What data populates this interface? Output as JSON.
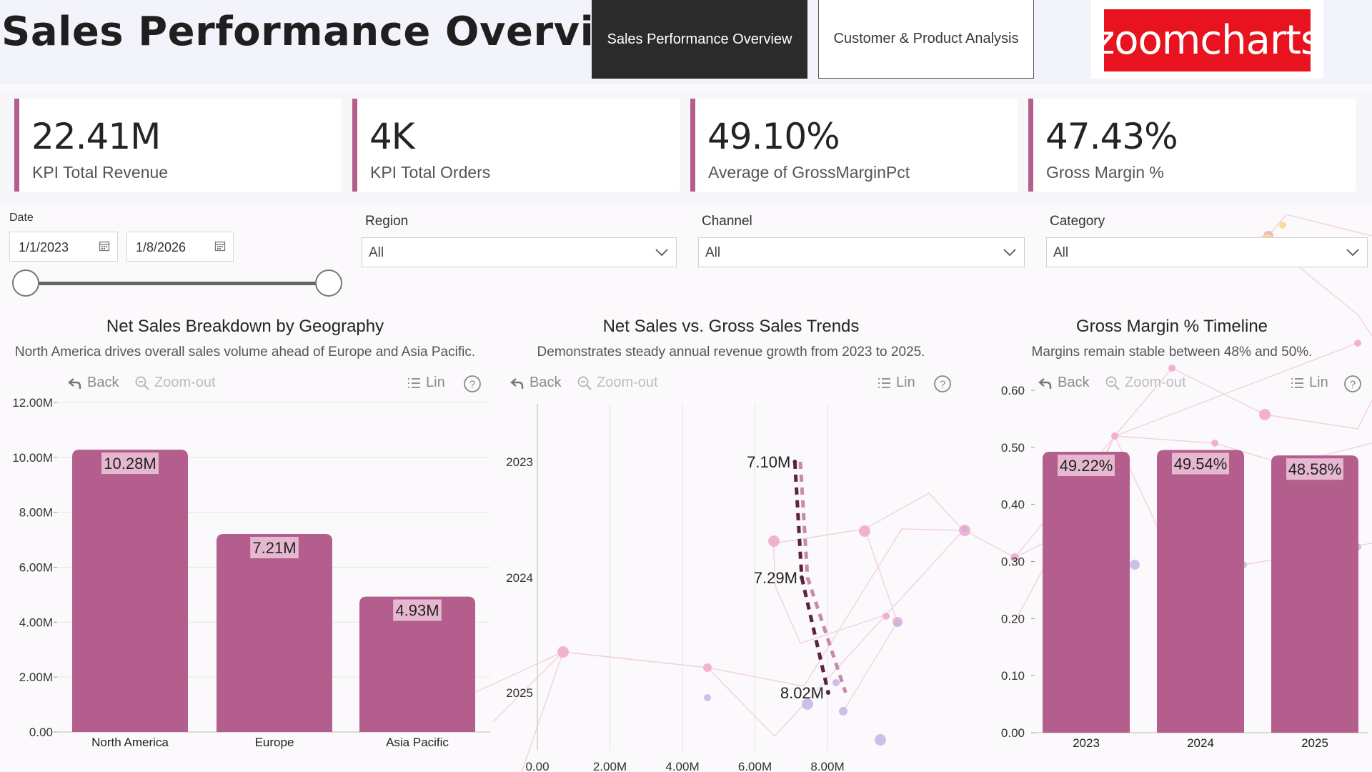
{
  "header": {
    "title": "Sales Performance Overview",
    "nav_active": "Sales Performance Overview",
    "nav_inactive": "Customer & Product Analysis",
    "logo_text": "zoomcharts"
  },
  "kpis": [
    {
      "value": "22.41M",
      "label": "KPI Total Revenue"
    },
    {
      "value": "4K",
      "label": "KPI Total Orders"
    },
    {
      "value": "49.10%",
      "label": "Average of GrossMarginPct"
    },
    {
      "value": "47.43%",
      "label": "Gross Margin %"
    }
  ],
  "filters": {
    "date": {
      "label": "Date",
      "start": "1/1/2023",
      "end": "1/8/2026"
    },
    "region": {
      "label": "Region",
      "value": "All"
    },
    "channel": {
      "label": "Channel",
      "value": "All"
    },
    "category": {
      "label": "Category",
      "value": "All"
    }
  },
  "toolbar": {
    "back": "Back",
    "zoom_out": "Zoom-out",
    "scale": "Lin"
  },
  "colors": {
    "accent": "#b35e8d",
    "dark_dash": "#5a2440",
    "light_dash": "#c98aa9",
    "label_bg": "#e6b8cf"
  },
  "chart_data": [
    {
      "type": "bar",
      "title": "Net Sales Breakdown by Geography",
      "subtitle": "North America drives overall sales volume ahead of Europe and Asia Pacific.",
      "categories": [
        "North America",
        "Europe",
        "Asia Pacific"
      ],
      "values": [
        10.28,
        7.21,
        4.93
      ],
      "data_labels": [
        "10.28M",
        "7.21M",
        "4.93M"
      ],
      "y_ticks": [
        "0.00",
        "2.00M",
        "4.00M",
        "6.00M",
        "8.00M",
        "10.00M",
        "12.00M"
      ],
      "ylim": [
        0,
        12
      ],
      "grid": true
    },
    {
      "type": "line",
      "title": "Net Sales vs. Gross Sales Trends",
      "subtitle": "Demonstrates steady annual revenue growth from 2023 to 2025.",
      "orientation": "horizontal",
      "categories": [
        "2023",
        "2024",
        "2025"
      ],
      "series": [
        {
          "values": [
            7.1,
            7.29,
            8.02
          ],
          "style": "dashed-dark"
        },
        {
          "values": [
            7.25,
            7.45,
            8.5
          ],
          "style": "dashed-light"
        }
      ],
      "data_labels": [
        "7.10M",
        "7.29M",
        "8.02M"
      ],
      "x_ticks": [
        "0.00",
        "2.00M",
        "4.00M",
        "6.00M",
        "8.00M"
      ],
      "xlim": [
        0,
        8
      ],
      "grid": true
    },
    {
      "type": "bar",
      "title": "Gross Margin % Timeline",
      "subtitle": "Margins remain stable between 48% and 50%.",
      "categories": [
        "2023",
        "2024",
        "2025"
      ],
      "values": [
        0.4922,
        0.4954,
        0.4858
      ],
      "data_labels": [
        "49.22%",
        "49.54%",
        "48.58%"
      ],
      "y_ticks": [
        "0.00",
        "0.10",
        "0.20",
        "0.30",
        "0.40",
        "0.50",
        "0.60"
      ],
      "ylim": [
        0,
        0.6
      ],
      "grid": false
    }
  ]
}
